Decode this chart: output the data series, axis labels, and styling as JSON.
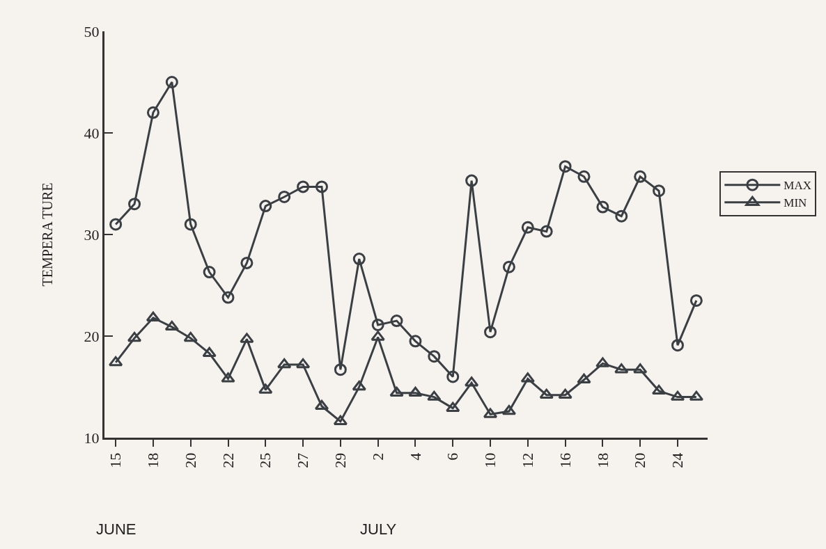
{
  "chart_data": {
    "type": "line",
    "ylabel": "TEMPERA TURE",
    "categories": [
      "15",
      null,
      "18",
      null,
      "20",
      null,
      "22",
      null,
      "25",
      null,
      "27",
      null,
      "29",
      null,
      "2",
      null,
      "4",
      null,
      "6",
      null,
      "10",
      null,
      "12",
      null,
      "16",
      null,
      "18",
      null,
      "20",
      null,
      "24",
      null
    ],
    "series": [
      {
        "name": "MAX",
        "color": "#3a3f44",
        "marker": "circle",
        "values": [
          31,
          33,
          42,
          45,
          31,
          26.3,
          23.8,
          27.2,
          32.8,
          33.7,
          34.7,
          34.7,
          16.7,
          27.6,
          21.1,
          21.5,
          19.5,
          18.0,
          16.0,
          35.3,
          20.4,
          26.8,
          30.7,
          30.3,
          36.7,
          35.7,
          32.7,
          31.8,
          35.7,
          34.3,
          19.1,
          23.5
        ]
      },
      {
        "name": "MIN",
        "color": "#3a3f44",
        "marker": "triangle",
        "values": [
          17.4,
          19.8,
          21.8,
          20.9,
          19.8,
          18.3,
          15.8,
          19.7,
          14.7,
          17.2,
          17.2,
          13.1,
          11.6,
          15.0,
          19.9,
          14.4,
          14.4,
          14.0,
          12.9,
          15.4,
          12.3,
          12.6,
          15.8,
          14.2,
          14.2,
          15.7,
          17.3,
          16.7,
          16.7,
          14.6,
          14.0,
          14.0
        ]
      }
    ],
    "ylim": [
      10,
      50
    ],
    "yticks": [
      10,
      20,
      30,
      40,
      50
    ],
    "grid": false,
    "legend": "right",
    "line_style": "solid",
    "annotations": [
      "JUNE",
      "JULY"
    ]
  }
}
